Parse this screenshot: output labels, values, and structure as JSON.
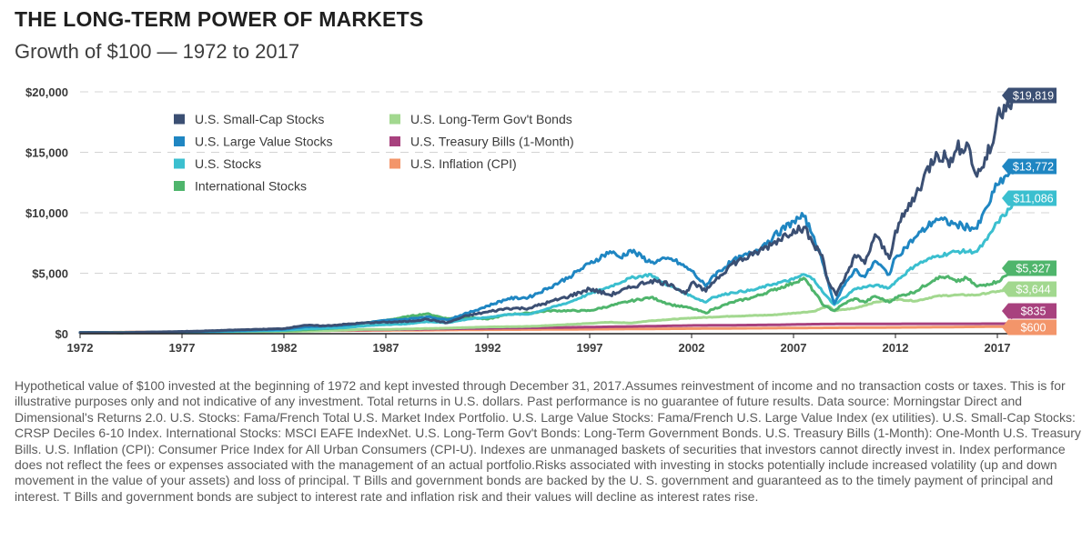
{
  "title": "THE LONG-TERM POWER OF MARKETS",
  "subtitle": "Growth of $100 — 1972 to 2017",
  "footnote": "Hypothetical value of $100 invested at the beginning of 1972 and kept invested through December 31, 2017.Assumes reinvestment of income and no transaction costs or taxes. This is for illustrative purposes only and not indicative of any investment. Total returns in U.S. dollars. Past performance is no guarantee of future results. Data source: Morningstar Direct and Dimensional's Returns 2.0. U.S. Stocks: Fama/French Total U.S. Market Index Portfolio. U.S. Large Value Stocks: Fama/French U.S. Large Value Index (ex utilities). U.S. Small-Cap Stocks: CRSP Deciles 6-10 Index. International Stocks: MSCI EAFE IndexNet. U.S. Long-Term Gov't Bonds: Long-Term Government Bonds. U.S. Treasury Bills (1-Month): One-Month U.S. Treasury Bills. U.S. Inflation (CPI): Consumer Price Index for All Urban Consumers (CPI-U). Indexes are unmanaged baskets of securities that investors cannot directly invest in. Index performance does not reflect the fees or expenses associated with the management of an actual portfolio.Risks associated with investing in stocks potentially include increased volatility (up and down movement in the value of your assets) and loss of principal. T Bills and government bonds are backed by the U. S. government and guaranteed as to the timely payment of principal and interest. T Bills and government bonds are subject to interest rate and inflation risk and their values will decline as interest rates rise.",
  "chart_data": {
    "type": "line",
    "title": "Growth of $100 — 1972 to 2017",
    "xlabel": "",
    "ylabel": "",
    "xlim": [
      1972,
      2017
    ],
    "ylim": [
      0,
      20000
    ],
    "grid": "horizontal dashed",
    "legend_position": "top-left",
    "x_ticks": [
      1972,
      1977,
      1982,
      1987,
      1992,
      1997,
      2002,
      2007,
      2012,
      2017
    ],
    "x_tick_labels": [
      "1972",
      "1977",
      "1982",
      "1987",
      "1992",
      "1997",
      "2002",
      "2007",
      "2012",
      "2017"
    ],
    "y_ticks": [
      0,
      5000,
      10000,
      15000,
      20000
    ],
    "y_tick_labels": [
      "$0",
      "$5,000",
      "$10,000",
      "$15,000",
      "$20,000"
    ],
    "series": [
      {
        "name": "U.S. Small-Cap Stocks",
        "color": "#3b4f73",
        "end_label": "$19,819",
        "points": [
          [
            1972,
            100
          ],
          [
            1974,
            90
          ],
          [
            1976,
            150
          ],
          [
            1978,
            220
          ],
          [
            1980,
            330
          ],
          [
            1982,
            420
          ],
          [
            1983,
            700
          ],
          [
            1984,
            650
          ],
          [
            1986,
            900
          ],
          [
            1987,
            950
          ],
          [
            1988,
            1000
          ],
          [
            1989,
            1200
          ],
          [
            1990,
            900
          ],
          [
            1991,
            1500
          ],
          [
            1992,
            1800
          ],
          [
            1993,
            2100
          ],
          [
            1994,
            2100
          ],
          [
            1995,
            2600
          ],
          [
            1996,
            3100
          ],
          [
            1997,
            3700
          ],
          [
            1998,
            3200
          ],
          [
            1999,
            3800
          ],
          [
            2000,
            4400
          ],
          [
            2001,
            4100
          ],
          [
            2001.7,
            3300
          ],
          [
            2002,
            4200
          ],
          [
            2002.7,
            3500
          ],
          [
            2003,
            4200
          ],
          [
            2004,
            5800
          ],
          [
            2005,
            6500
          ],
          [
            2006,
            7500
          ],
          [
            2007,
            8600
          ],
          [
            2007.5,
            8800
          ],
          [
            2008,
            7300
          ],
          [
            2008.4,
            6500
          ],
          [
            2008.7,
            4300
          ],
          [
            2009.1,
            3200
          ],
          [
            2009.5,
            4500
          ],
          [
            2010,
            6500
          ],
          [
            2010.5,
            5800
          ],
          [
            2011,
            8200
          ],
          [
            2011.7,
            6200
          ],
          [
            2012,
            8500
          ],
          [
            2013,
            11500
          ],
          [
            2014,
            15000
          ],
          [
            2014.8,
            14200
          ],
          [
            2015,
            15200
          ],
          [
            2015.5,
            15800
          ],
          [
            2016,
            13000
          ],
          [
            2016.8,
            15800
          ],
          [
            2017,
            18000
          ],
          [
            2017.5,
            19200
          ],
          [
            2018,
            19819
          ]
        ]
      },
      {
        "name": "U.S. Large Value Stocks",
        "color": "#1f86c2",
        "end_label": "$13,772",
        "points": [
          [
            1972,
            100
          ],
          [
            1974,
            80
          ],
          [
            1976,
            140
          ],
          [
            1978,
            190
          ],
          [
            1980,
            270
          ],
          [
            1982,
            360
          ],
          [
            1983,
            550
          ],
          [
            1985,
            700
          ],
          [
            1986,
            900
          ],
          [
            1987,
            1100
          ],
          [
            1988,
            1200
          ],
          [
            1989,
            1400
          ],
          [
            1990,
            1150
          ],
          [
            1991,
            1700
          ],
          [
            1992,
            2300
          ],
          [
            1993,
            2900
          ],
          [
            1994,
            3000
          ],
          [
            1995,
            3800
          ],
          [
            1996,
            4700
          ],
          [
            1997,
            5800
          ],
          [
            1998,
            6800
          ],
          [
            1998.5,
            6300
          ],
          [
            1999,
            6900
          ],
          [
            2000,
            5900
          ],
          [
            2001,
            6200
          ],
          [
            2002,
            5200
          ],
          [
            2002.7,
            3900
          ],
          [
            2003,
            4700
          ],
          [
            2004,
            6000
          ],
          [
            2005,
            6700
          ],
          [
            2006,
            8000
          ],
          [
            2007,
            9300
          ],
          [
            2007.5,
            9700
          ],
          [
            2008,
            8000
          ],
          [
            2008.5,
            5500
          ],
          [
            2009,
            2500
          ],
          [
            2009.5,
            4000
          ],
          [
            2010,
            5300
          ],
          [
            2010.5,
            4700
          ],
          [
            2011,
            6000
          ],
          [
            2011.7,
            4900
          ],
          [
            2012,
            6300
          ],
          [
            2013,
            8000
          ],
          [
            2014,
            9500
          ],
          [
            2015,
            9000
          ],
          [
            2016,
            8700
          ],
          [
            2016.5,
            10500
          ],
          [
            2017,
            12300
          ],
          [
            2017.6,
            13300
          ],
          [
            2018,
            13772
          ]
        ]
      },
      {
        "name": "U.S. Stocks",
        "color": "#3bbfcf",
        "end_label": "$11,086",
        "points": [
          [
            1972,
            100
          ],
          [
            1974,
            70
          ],
          [
            1976,
            120
          ],
          [
            1978,
            150
          ],
          [
            1980,
            210
          ],
          [
            1982,
            270
          ],
          [
            1983,
            400
          ],
          [
            1985,
            500
          ],
          [
            1986,
            650
          ],
          [
            1987,
            750
          ],
          [
            1988,
            800
          ],
          [
            1989,
            1000
          ],
          [
            1990,
            900
          ],
          [
            1991,
            1200
          ],
          [
            1992,
            1350
          ],
          [
            1993,
            1600
          ],
          [
            1994,
            1600
          ],
          [
            1995,
            2100
          ],
          [
            1996,
            2600
          ],
          [
            1997,
            3300
          ],
          [
            1998,
            3900
          ],
          [
            1999,
            4600
          ],
          [
            2000,
            4900
          ],
          [
            2000.5,
            4300
          ],
          [
            2001,
            3900
          ],
          [
            2002,
            3100
          ],
          [
            2002.7,
            2600
          ],
          [
            2003,
            3000
          ],
          [
            2004,
            3400
          ],
          [
            2005,
            3600
          ],
          [
            2006,
            4100
          ],
          [
            2007,
            4500
          ],
          [
            2007.5,
            4900
          ],
          [
            2008,
            4500
          ],
          [
            2008.5,
            3300
          ],
          [
            2009,
            2400
          ],
          [
            2009.5,
            3000
          ],
          [
            2010,
            3700
          ],
          [
            2011,
            4000
          ],
          [
            2011.7,
            3800
          ],
          [
            2012,
            4300
          ],
          [
            2013,
            5700
          ],
          [
            2014,
            6400
          ],
          [
            2015,
            6800
          ],
          [
            2016,
            6800
          ],
          [
            2016.5,
            7800
          ],
          [
            2017,
            9200
          ],
          [
            2017.6,
            10300
          ],
          [
            2018,
            11086
          ]
        ]
      },
      {
        "name": "International Stocks",
        "color": "#4fb56c",
        "end_label": "$5,327",
        "points": [
          [
            1972,
            100
          ],
          [
            1974,
            70
          ],
          [
            1976,
            100
          ],
          [
            1978,
            160
          ],
          [
            1980,
            230
          ],
          [
            1982,
            260
          ],
          [
            1983,
            320
          ],
          [
            1985,
            500
          ],
          [
            1986,
            900
          ],
          [
            1987,
            1100
          ],
          [
            1988,
            1400
          ],
          [
            1989,
            1650
          ],
          [
            1990,
            1250
          ],
          [
            1991,
            1350
          ],
          [
            1992,
            1200
          ],
          [
            1993,
            1600
          ],
          [
            1994,
            1700
          ],
          [
            1995,
            1900
          ],
          [
            1996,
            1900
          ],
          [
            1997,
            1900
          ],
          [
            1998,
            2300
          ],
          [
            1999,
            2700
          ],
          [
            2000,
            3000
          ],
          [
            2000.5,
            2700
          ],
          [
            2001,
            2400
          ],
          [
            2002,
            2100
          ],
          [
            2002.7,
            1700
          ],
          [
            2003,
            2000
          ],
          [
            2004,
            2600
          ],
          [
            2005,
            3000
          ],
          [
            2006,
            3600
          ],
          [
            2007,
            4200
          ],
          [
            2007.5,
            4600
          ],
          [
            2008,
            3500
          ],
          [
            2008.5,
            2300
          ],
          [
            2009,
            1900
          ],
          [
            2009.5,
            2500
          ],
          [
            2010,
            2900
          ],
          [
            2010.5,
            2600
          ],
          [
            2011,
            3100
          ],
          [
            2011.7,
            2600
          ],
          [
            2012,
            3000
          ],
          [
            2013,
            3500
          ],
          [
            2014,
            4600
          ],
          [
            2014.5,
            4700
          ],
          [
            2015,
            4300
          ],
          [
            2015.5,
            4600
          ],
          [
            2016,
            3900
          ],
          [
            2016.5,
            4100
          ],
          [
            2017,
            4300
          ],
          [
            2017.6,
            5000
          ],
          [
            2018,
            5327
          ]
        ]
      },
      {
        "name": "U.S. Long-Term Gov't Bonds",
        "color": "#a2d88f",
        "end_label": "$3,644",
        "points": [
          [
            1972,
            100
          ],
          [
            1976,
            130
          ],
          [
            1980,
            140
          ],
          [
            1982,
            170
          ],
          [
            1984,
            240
          ],
          [
            1986,
            360
          ],
          [
            1987,
            350
          ],
          [
            1988,
            390
          ],
          [
            1990,
            460
          ],
          [
            1992,
            560
          ],
          [
            1994,
            600
          ],
          [
            1996,
            760
          ],
          [
            1998,
            950
          ],
          [
            1999,
            880
          ],
          [
            2000,
            1070
          ],
          [
            2002,
            1300
          ],
          [
            2004,
            1450
          ],
          [
            2006,
            1550
          ],
          [
            2008,
            1850
          ],
          [
            2008.7,
            2300
          ],
          [
            2009,
            1900
          ],
          [
            2010,
            2100
          ],
          [
            2011,
            2600
          ],
          [
            2012,
            2850
          ],
          [
            2013,
            2700
          ],
          [
            2014,
            3100
          ],
          [
            2015,
            3200
          ],
          [
            2016,
            3200
          ],
          [
            2017,
            3500
          ],
          [
            2018,
            3644
          ]
        ]
      },
      {
        "name": "U.S. Treasury Bills (1-Month)",
        "color": "#a8417e",
        "end_label": "$835",
        "points": [
          [
            1972,
            100
          ],
          [
            1976,
            130
          ],
          [
            1980,
            180
          ],
          [
            1984,
            270
          ],
          [
            1988,
            350
          ],
          [
            1992,
            450
          ],
          [
            1996,
            520
          ],
          [
            2000,
            620
          ],
          [
            2002,
            680
          ],
          [
            2004,
            700
          ],
          [
            2006,
            730
          ],
          [
            2008,
            790
          ],
          [
            2010,
            810
          ],
          [
            2012,
            815
          ],
          [
            2014,
            820
          ],
          [
            2016,
            822
          ],
          [
            2018,
            835
          ]
        ]
      },
      {
        "name": "U.S. Inflation (CPI)",
        "color": "#f3956a",
        "end_label": "$600",
        "points": [
          [
            1972,
            100
          ],
          [
            1976,
            140
          ],
          [
            1980,
            200
          ],
          [
            1984,
            250
          ],
          [
            1988,
            280
          ],
          [
            1992,
            330
          ],
          [
            1996,
            360
          ],
          [
            2000,
            400
          ],
          [
            2004,
            440
          ],
          [
            2008,
            480
          ],
          [
            2012,
            520
          ],
          [
            2014,
            540
          ],
          [
            2016,
            570
          ],
          [
            2018,
            600
          ]
        ]
      }
    ]
  }
}
